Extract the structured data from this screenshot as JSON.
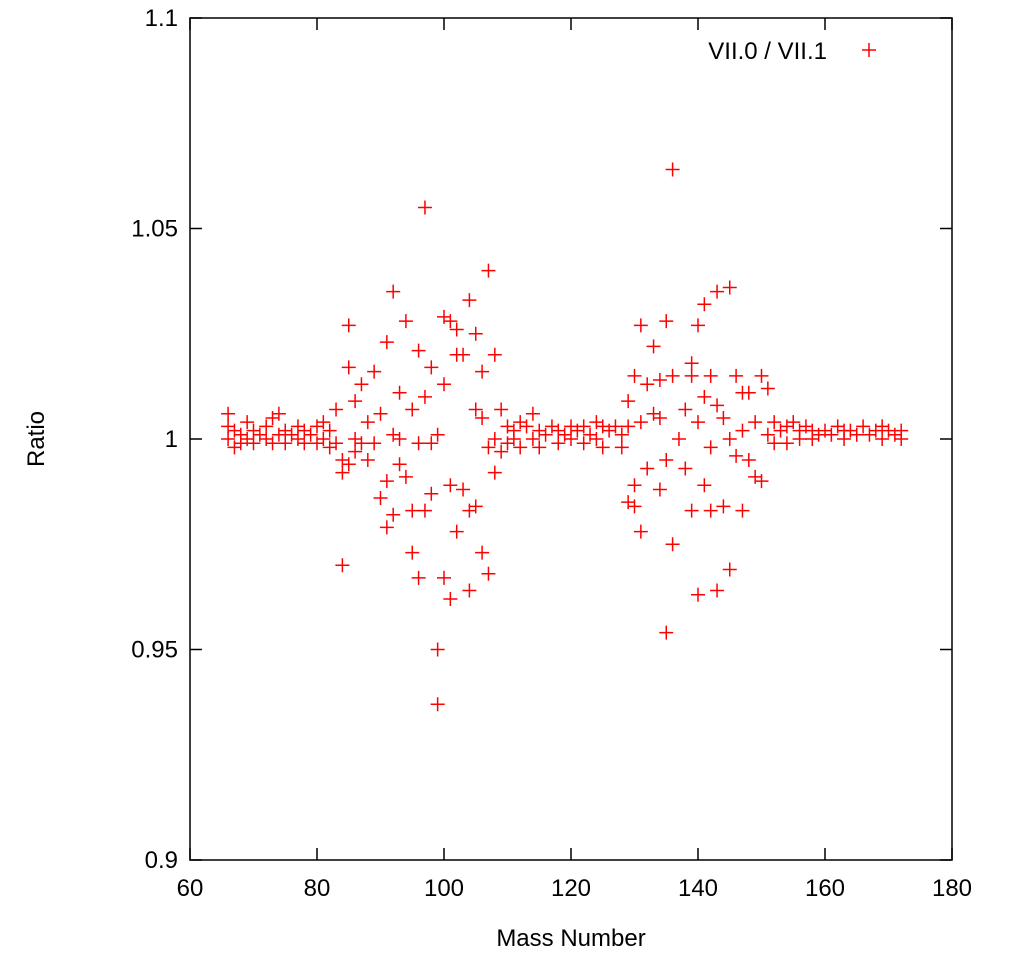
{
  "chart_data": {
    "type": "scatter",
    "title": "",
    "xlabel": "Mass Number",
    "ylabel": "Ratio",
    "xlim": [
      60,
      180
    ],
    "ylim": [
      0.9,
      1.1
    ],
    "xticks": [
      60,
      80,
      100,
      120,
      140,
      160,
      180
    ],
    "xtick_labels": [
      "60",
      "80",
      "100",
      "120",
      "140",
      "160",
      "180"
    ],
    "yticks": [
      0.9,
      0.95,
      1.0,
      1.05,
      1.1
    ],
    "ytick_labels": [
      "0.9",
      "0.95",
      "1",
      "1.05",
      "1.1"
    ],
    "grid": false,
    "legend": {
      "position": "top-right",
      "entries": [
        "VII.0 / VII.1"
      ]
    },
    "series": [
      {
        "name": "VII.0 / VII.1",
        "color": "#ff0000",
        "marker": "plus",
        "points": [
          [
            66,
            1.006
          ],
          [
            66,
            1.003
          ],
          [
            66,
            1.0
          ],
          [
            67,
            0.998
          ],
          [
            67,
            1.002
          ],
          [
            68,
            1.001
          ],
          [
            68,
            0.999
          ],
          [
            69,
            1.004
          ],
          [
            69,
            1.0
          ],
          [
            70,
            1.002
          ],
          [
            70,
            0.999
          ],
          [
            71,
            1.001
          ],
          [
            72,
            1.003
          ],
          [
            72,
            1.0
          ],
          [
            73,
            1.005
          ],
          [
            73,
            0.999
          ],
          [
            74,
            1.006
          ],
          [
            74,
            1.001
          ],
          [
            75,
            1.002
          ],
          [
            75,
            0.999
          ],
          [
            76,
            1.001
          ],
          [
            77,
            1.003
          ],
          [
            77,
            1.0
          ],
          [
            78,
            1.002
          ],
          [
            78,
            0.999
          ],
          [
            79,
            1.001
          ],
          [
            80,
            1.003
          ],
          [
            80,
            0.999
          ],
          [
            81,
            1.004
          ],
          [
            81,
            1.0
          ],
          [
            82,
            1.002
          ],
          [
            82,
            0.998
          ],
          [
            83,
            1.007
          ],
          [
            83,
            0.999
          ],
          [
            84,
            0.97
          ],
          [
            84,
            0.992
          ],
          [
            84,
            0.995
          ],
          [
            85,
            1.027
          ],
          [
            85,
            1.017
          ],
          [
            85,
            0.994
          ],
          [
            86,
            1.009
          ],
          [
            86,
            0.997
          ],
          [
            86,
            1.0
          ],
          [
            87,
            1.013
          ],
          [
            87,
            0.999
          ],
          [
            88,
            1.004
          ],
          [
            88,
            0.995
          ],
          [
            89,
            1.016
          ],
          [
            89,
            0.999
          ],
          [
            90,
            1.006
          ],
          [
            90,
            0.986
          ],
          [
            91,
            1.023
          ],
          [
            91,
            0.979
          ],
          [
            91,
            0.99
          ],
          [
            92,
            1.035
          ],
          [
            92,
            0.982
          ],
          [
            92,
            1.001
          ],
          [
            93,
            1.011
          ],
          [
            93,
            0.994
          ],
          [
            93,
            1.0
          ],
          [
            94,
            1.028
          ],
          [
            94,
            0.991
          ],
          [
            95,
            0.973
          ],
          [
            95,
            0.983
          ],
          [
            95,
            1.007
          ],
          [
            96,
            1.021
          ],
          [
            96,
            0.967
          ],
          [
            96,
            0.999
          ],
          [
            97,
            1.055
          ],
          [
            97,
            1.01
          ],
          [
            97,
            0.983
          ],
          [
            98,
            1.017
          ],
          [
            98,
            0.987
          ],
          [
            98,
            0.999
          ],
          [
            99,
            0.95
          ],
          [
            99,
            0.937
          ],
          [
            99,
            1.001
          ],
          [
            100,
            1.029
          ],
          [
            100,
            0.967
          ],
          [
            100,
            1.013
          ],
          [
            101,
            0.962
          ],
          [
            101,
            1.028
          ],
          [
            101,
            0.989
          ],
          [
            102,
            1.02
          ],
          [
            102,
            0.978
          ],
          [
            102,
            1.026
          ],
          [
            103,
            1.02
          ],
          [
            103,
            0.988
          ],
          [
            104,
            1.033
          ],
          [
            104,
            0.964
          ],
          [
            104,
            0.983
          ],
          [
            105,
            1.025
          ],
          [
            105,
            1.007
          ],
          [
            105,
            0.984
          ],
          [
            106,
            1.016
          ],
          [
            106,
            0.973
          ],
          [
            106,
            1.005
          ],
          [
            107,
            1.04
          ],
          [
            107,
            0.968
          ],
          [
            107,
            0.998
          ],
          [
            108,
            1.02
          ],
          [
            108,
            0.992
          ],
          [
            108,
            1.0
          ],
          [
            109,
            1.007
          ],
          [
            109,
            0.997
          ],
          [
            110,
            1.003
          ],
          [
            110,
            0.999
          ],
          [
            111,
            1.002
          ],
          [
            111,
            1.0
          ],
          [
            112,
            1.004
          ],
          [
            112,
            0.998
          ],
          [
            113,
            1.003
          ],
          [
            114,
            1.006
          ],
          [
            114,
            1.0
          ],
          [
            115,
            1.002
          ],
          [
            115,
            0.998
          ],
          [
            116,
            1.001
          ],
          [
            117,
            1.003
          ],
          [
            118,
            1.002
          ],
          [
            118,
            0.999
          ],
          [
            119,
            1.001
          ],
          [
            120,
            1.003
          ],
          [
            120,
            1.0
          ],
          [
            121,
            1.002
          ],
          [
            122,
            1.003
          ],
          [
            122,
            0.999
          ],
          [
            123,
            1.001
          ],
          [
            124,
            1.004
          ],
          [
            124,
            1.0
          ],
          [
            125,
            1.003
          ],
          [
            125,
            0.998
          ],
          [
            126,
            1.002
          ],
          [
            127,
            1.003
          ],
          [
            128,
            1.001
          ],
          [
            128,
            0.998
          ],
          [
            129,
            0.985
          ],
          [
            129,
            1.009
          ],
          [
            129,
            1.003
          ],
          [
            130,
            1.015
          ],
          [
            130,
            0.984
          ],
          [
            130,
            0.989
          ],
          [
            131,
            1.027
          ],
          [
            131,
            0.978
          ],
          [
            131,
            1.004
          ],
          [
            132,
            1.013
          ],
          [
            132,
            0.993
          ],
          [
            133,
            1.022
          ],
          [
            133,
            1.006
          ],
          [
            134,
            0.988
          ],
          [
            134,
            1.014
          ],
          [
            134,
            1.005
          ],
          [
            135,
            0.954
          ],
          [
            135,
            1.028
          ],
          [
            135,
            0.995
          ],
          [
            136,
            1.064
          ],
          [
            136,
            0.975
          ],
          [
            136,
            1.015
          ],
          [
            137,
            1.0
          ],
          [
            138,
            1.007
          ],
          [
            138,
            0.993
          ],
          [
            139,
            1.018
          ],
          [
            139,
            0.983
          ],
          [
            139,
            1.015
          ],
          [
            140,
            1.027
          ],
          [
            140,
            0.963
          ],
          [
            140,
            1.004
          ],
          [
            141,
            0.989
          ],
          [
            141,
            1.032
          ],
          [
            141,
            1.01
          ],
          [
            142,
            1.015
          ],
          [
            142,
            0.983
          ],
          [
            142,
            0.998
          ],
          [
            143,
            1.035
          ],
          [
            143,
            0.964
          ],
          [
            143,
            1.008
          ],
          [
            144,
            0.984
          ],
          [
            144,
            1.005
          ],
          [
            145,
            1.036
          ],
          [
            145,
            0.969
          ],
          [
            145,
            1.0
          ],
          [
            146,
            1.015
          ],
          [
            146,
            0.996
          ],
          [
            147,
            1.011
          ],
          [
            147,
            0.983
          ],
          [
            147,
            1.002
          ],
          [
            148,
            1.011
          ],
          [
            148,
            0.995
          ],
          [
            149,
            1.004
          ],
          [
            149,
            0.991
          ],
          [
            150,
            1.015
          ],
          [
            150,
            0.99
          ],
          [
            151,
            1.012
          ],
          [
            151,
            1.001
          ],
          [
            152,
            1.004
          ],
          [
            152,
            0.999
          ],
          [
            153,
            1.002
          ],
          [
            154,
            1.003
          ],
          [
            154,
            0.999
          ],
          [
            155,
            1.004
          ],
          [
            156,
            1.002
          ],
          [
            156,
            1.0
          ],
          [
            157,
            1.003
          ],
          [
            158,
            1.002
          ],
          [
            158,
            1.0
          ],
          [
            159,
            1.001
          ],
          [
            160,
            1.002
          ],
          [
            161,
            1.001
          ],
          [
            162,
            1.003
          ],
          [
            163,
            1.002
          ],
          [
            163,
            1.0
          ],
          [
            164,
            1.002
          ],
          [
            165,
            1.001
          ],
          [
            166,
            1.003
          ],
          [
            167,
            1.001
          ],
          [
            168,
            1.002
          ],
          [
            169,
            1.003
          ],
          [
            169,
            1.0
          ],
          [
            170,
            1.002
          ],
          [
            171,
            1.001
          ],
          [
            172,
            1.002
          ],
          [
            172,
            1.0
          ]
        ]
      }
    ]
  }
}
